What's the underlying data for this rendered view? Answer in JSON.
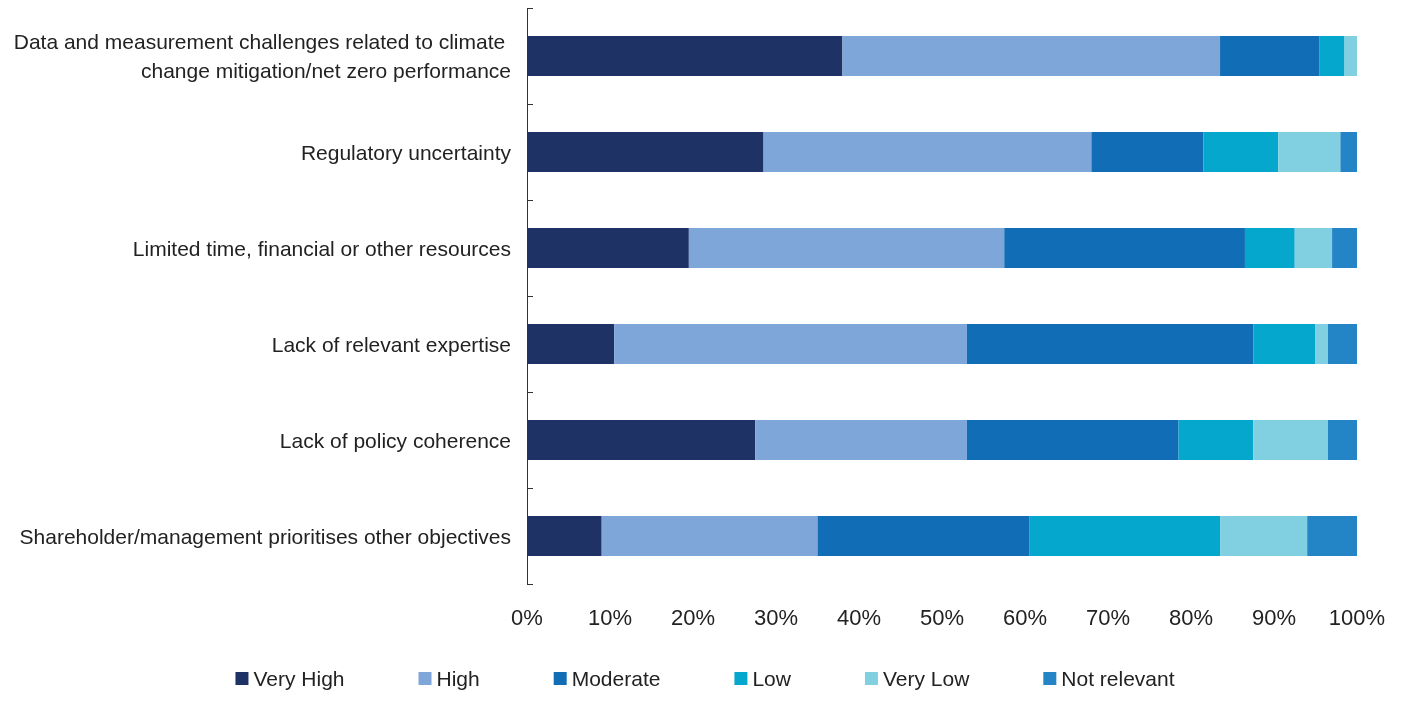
{
  "chart_data": {
    "type": "bar",
    "orientation": "horizontal",
    "stacked": true,
    "categories": [
      "Data and measurement challenges related to climate change mitigation/net zero performance",
      "Regulatory uncertainty",
      "Limited time, financial or other resources",
      "Lack of relevant expertise",
      "Lack of policy coherence",
      "Shareholder/management prioritises other objectives"
    ],
    "series": [
      {
        "name": "Very High",
        "color": "#1f3265",
        "values": [
          38,
          28.5,
          19.5,
          10.5,
          27.5,
          9
        ]
      },
      {
        "name": "High",
        "color": "#7ea6d8",
        "values": [
          45.5,
          39.5,
          38,
          42.5,
          25.5,
          26
        ]
      },
      {
        "name": "Moderate",
        "color": "#116db6",
        "values": [
          12,
          13.5,
          29,
          34.5,
          25.5,
          25.5
        ]
      },
      {
        "name": "Low",
        "color": "#05a8cc",
        "values": [
          3,
          9,
          6,
          7.5,
          9,
          23
        ]
      },
      {
        "name": "Very Low",
        "color": "#80d0e2",
        "values": [
          1.5,
          7.5,
          4.5,
          1.5,
          9,
          10.5
        ]
      },
      {
        "name": "Not relevant",
        "color": "#2384c6",
        "values": [
          0,
          2,
          3,
          3.5,
          3.5,
          6
        ]
      }
    ],
    "xlim": [
      0,
      100
    ],
    "xticks": [
      {
        "value": 0,
        "label": "0%"
      },
      {
        "value": 10,
        "label": "10%"
      },
      {
        "value": 20,
        "label": "20%"
      },
      {
        "value": 30,
        "label": "30%"
      },
      {
        "value": 40,
        "label": "40%"
      },
      {
        "value": 50,
        "label": "50%"
      },
      {
        "value": 60,
        "label": "60%"
      },
      {
        "value": 70,
        "label": "70%"
      },
      {
        "value": 80,
        "label": "80%"
      },
      {
        "value": 90,
        "label": "90%"
      },
      {
        "value": 100,
        "label": "100%"
      }
    ],
    "grid": false,
    "legend": "bottom"
  }
}
